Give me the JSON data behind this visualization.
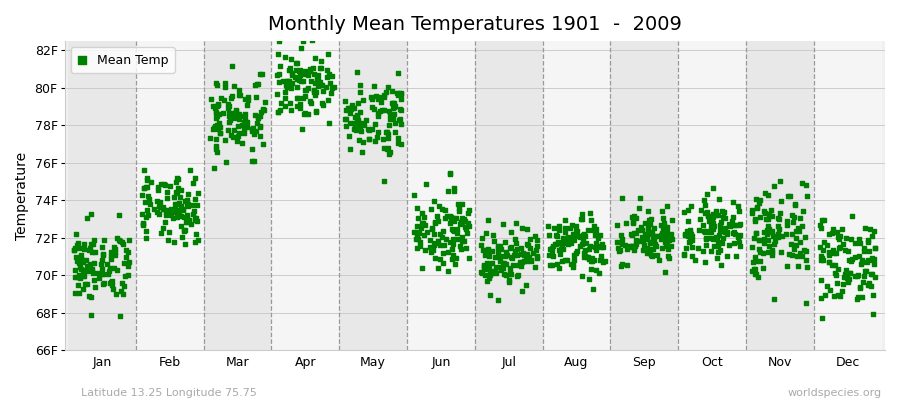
{
  "title": "Monthly Mean Temperatures 1901  -  2009",
  "ylabel": "Temperature",
  "subtitle_left": "Latitude 13.25 Longitude 75.75",
  "subtitle_right": "worldspecies.org",
  "legend_label": "Mean Temp",
  "marker_color": "#008000",
  "marker_size": 9,
  "years": 109,
  "ylim": [
    66,
    82.5
  ],
  "yticks": [
    66,
    68,
    70,
    72,
    74,
    76,
    78,
    80,
    82
  ],
  "ytick_labels": [
    "66F",
    "68F",
    "70F",
    "72F",
    "74F",
    "76F",
    "78F",
    "80F",
    "82F"
  ],
  "month_names": [
    "Jan",
    "Feb",
    "Mar",
    "Apr",
    "May",
    "Jun",
    "Jul",
    "Aug",
    "Sep",
    "Oct",
    "Nov",
    "Dec"
  ],
  "monthly_mean_F": [
    70.5,
    73.5,
    78.5,
    80.2,
    78.5,
    72.5,
    71.0,
    71.5,
    72.0,
    72.5,
    72.2,
    70.8
  ],
  "monthly_std_F": [
    1.0,
    0.9,
    1.1,
    0.9,
    1.0,
    1.0,
    0.8,
    0.8,
    0.8,
    0.8,
    1.3,
    1.2
  ],
  "bg_color": "#ffffff",
  "ax_bg_color": "#f0f0f0",
  "band_even": "#e8e8e8",
  "band_odd": "#f5f5f5",
  "grid_color": "#cccccc",
  "dashed_line_color": "#999999",
  "title_fontsize": 14,
  "axis_label_fontsize": 10,
  "tick_fontsize": 9
}
